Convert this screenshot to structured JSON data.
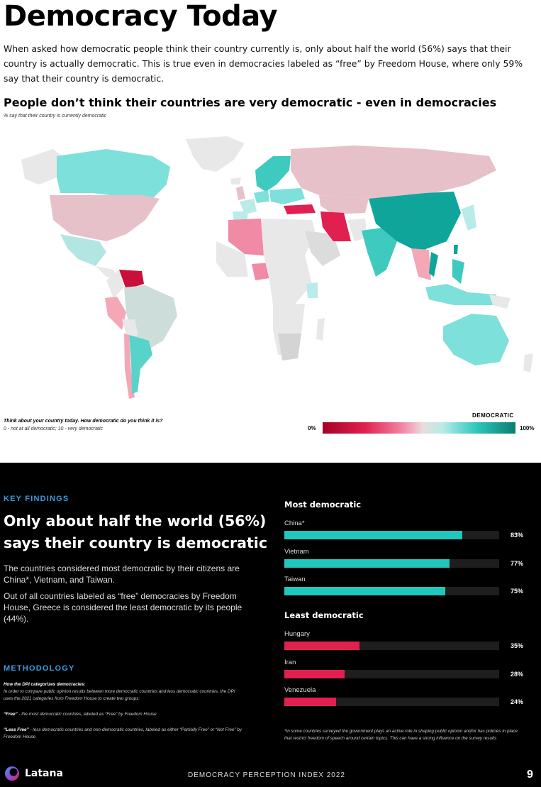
{
  "header": {
    "title": "Democracy Today",
    "intro": "When asked how democratic people think their country currently is, only about half the world (56%) says that their country is actually democratic. This is true even in democracies labeled as “free” by Freedom House, where only 59% say that their country is democratic."
  },
  "map": {
    "title": "People don’t think their countries are very democratic - even in democracies",
    "subtitle": "% say that their country is currently democratic",
    "question": "Think about your country today. How democratic do you think it is?",
    "scale": "0 - not at all democratic; 10 - very democratic",
    "legend": {
      "label": "DEMOCRATIC",
      "min": "0%",
      "max": "100%"
    },
    "colors": {
      "low": "#a50026",
      "mid": "#e8dcdc",
      "high": "#0b7d74",
      "no_data": "#e8e8e8"
    }
  },
  "findings": {
    "label": "KEY FINDINGS",
    "headline": "Only about half the world (56%) says their country is democratic",
    "p1": "The countries considered most democratic by their citizens are China*, Vietnam, and Taiwan.",
    "p2": "Out of all countries labeled as “free” democracies by Freedom House, Greece is considered the least democratic by its people (44%)."
  },
  "methodology": {
    "label": "METHODOLOGY",
    "heading": "How the DPI categorizes democracies:",
    "text": "In order to compare public opinion results between more democratic countries and less democratic countries, the DPI uses the 2021 categories from Freedom House to create two groups:",
    "free_term": "“Free”",
    "free_text": " - the most democratic countries, labeled as “Free” by Freedom House",
    "less_term": "“Less Free”",
    "less_text": "  - less democratic countries and non-democratic countries, labeled as either “Partially Free” or “Not Free” by Freedom House"
  },
  "chart_data": [
    {
      "type": "bar",
      "title": "Most democratic",
      "categories": [
        "China*",
        "Vietnam",
        "Taiwan"
      ],
      "values": [
        83,
        77,
        75
      ],
      "value_labels": [
        "83%",
        "77%",
        "75%"
      ],
      "ylim": [
        0,
        100
      ],
      "color": "#1fc7bd"
    },
    {
      "type": "bar",
      "title": "Least democratic",
      "categories": [
        "Hungary",
        "Iran",
        "Venezuela"
      ],
      "values": [
        35,
        28,
        24
      ],
      "value_labels": [
        "35%",
        "28%",
        "24%"
      ],
      "ylim": [
        0,
        100
      ],
      "color": "#e0214f"
    }
  ],
  "footnote": "*In some countries surveyed the government plays an active role in shaping public opinion and/or has policies in place that restrict freedom of speech around certain topics. This can have a strong influence on the survey results",
  "footer": {
    "brand": "Latana",
    "center": "DEMOCRACY PERCEPTION INDEX 2022",
    "page": "9"
  }
}
